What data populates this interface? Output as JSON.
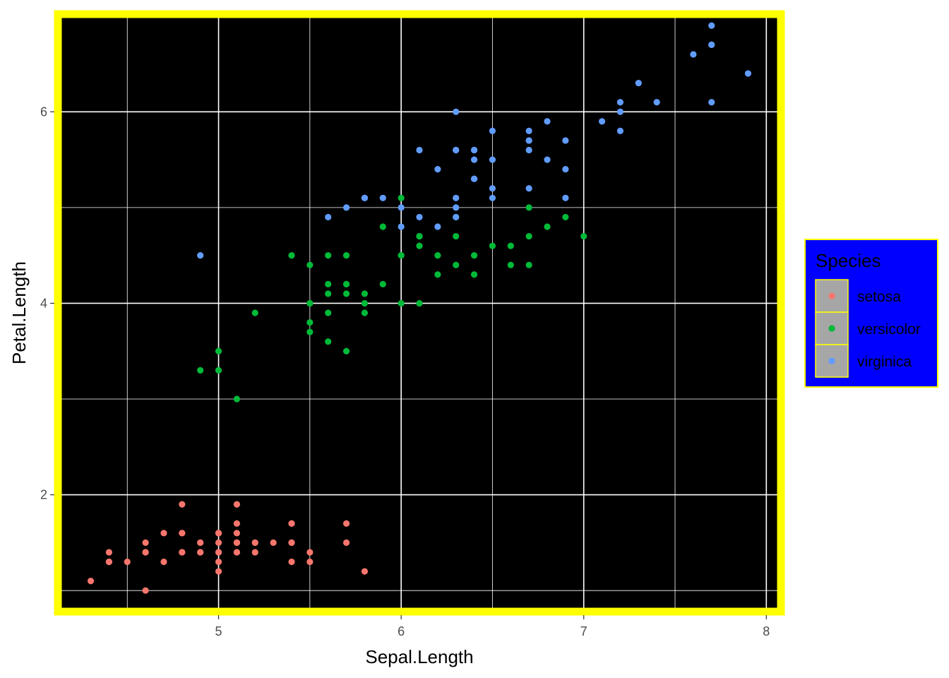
{
  "chart_data": {
    "type": "scatter",
    "xlabel": "Sepal.Length",
    "ylabel": "Petal.Length",
    "xlim": [
      4.12,
      8.08
    ],
    "ylim": [
      0.78,
      7.02
    ],
    "x_ticks": [
      5,
      6,
      7,
      8
    ],
    "y_ticks": [
      2,
      4,
      6
    ],
    "x_ticks_minor": [
      4.5,
      5.5,
      6.5,
      7.5
    ],
    "y_ticks_minor": [
      1,
      3,
      5,
      7
    ],
    "grid": true,
    "legend": {
      "title": "Species",
      "placement": "right",
      "entries": [
        "setosa",
        "versicolor",
        "virginica"
      ]
    },
    "colors": {
      "panel_background": "#000000",
      "panel_border": "#ffff00",
      "grid": "#ffffff",
      "legend_background": "#0000ff",
      "legend_border": "#ffff00",
      "legend_key_background": "#a6a6a6",
      "legend_key_border": "#ffff00"
    },
    "series": [
      {
        "name": "setosa",
        "color": "#F8766D",
        "points": [
          [
            5.1,
            1.4
          ],
          [
            4.9,
            1.4
          ],
          [
            4.7,
            1.3
          ],
          [
            4.6,
            1.5
          ],
          [
            5.0,
            1.4
          ],
          [
            5.4,
            1.7
          ],
          [
            4.6,
            1.4
          ],
          [
            5.0,
            1.5
          ],
          [
            4.4,
            1.4
          ],
          [
            4.9,
            1.5
          ],
          [
            5.4,
            1.5
          ],
          [
            4.8,
            1.6
          ],
          [
            4.8,
            1.4
          ],
          [
            4.3,
            1.1
          ],
          [
            5.8,
            1.2
          ],
          [
            5.7,
            1.5
          ],
          [
            5.4,
            1.3
          ],
          [
            5.1,
            1.4
          ],
          [
            5.7,
            1.7
          ],
          [
            5.1,
            1.5
          ],
          [
            5.4,
            1.7
          ],
          [
            5.1,
            1.5
          ],
          [
            4.6,
            1.0
          ],
          [
            5.1,
            1.7
          ],
          [
            4.8,
            1.9
          ],
          [
            5.0,
            1.6
          ],
          [
            5.0,
            1.6
          ],
          [
            5.2,
            1.5
          ],
          [
            5.2,
            1.4
          ],
          [
            4.7,
            1.6
          ],
          [
            4.8,
            1.6
          ],
          [
            5.4,
            1.5
          ],
          [
            5.2,
            1.5
          ],
          [
            5.5,
            1.4
          ],
          [
            4.9,
            1.5
          ],
          [
            5.0,
            1.2
          ],
          [
            5.5,
            1.3
          ],
          [
            4.9,
            1.4
          ],
          [
            4.4,
            1.3
          ],
          [
            5.1,
            1.5
          ],
          [
            5.0,
            1.3
          ],
          [
            4.5,
            1.3
          ],
          [
            4.4,
            1.3
          ],
          [
            5.0,
            1.6
          ],
          [
            5.1,
            1.9
          ],
          [
            4.8,
            1.4
          ],
          [
            5.1,
            1.6
          ],
          [
            4.6,
            1.4
          ],
          [
            5.3,
            1.5
          ],
          [
            5.0,
            1.4
          ]
        ]
      },
      {
        "name": "versicolor",
        "color": "#00BA38",
        "points": [
          [
            7.0,
            4.7
          ],
          [
            6.4,
            4.5
          ],
          [
            6.9,
            4.9
          ],
          [
            5.5,
            4.0
          ],
          [
            6.5,
            4.6
          ],
          [
            5.7,
            4.5
          ],
          [
            6.3,
            4.7
          ],
          [
            4.9,
            3.3
          ],
          [
            6.6,
            4.6
          ],
          [
            5.2,
            3.9
          ],
          [
            5.0,
            3.5
          ],
          [
            5.9,
            4.2
          ],
          [
            6.0,
            4.0
          ],
          [
            6.1,
            4.7
          ],
          [
            5.6,
            3.6
          ],
          [
            6.7,
            4.4
          ],
          [
            5.6,
            4.5
          ],
          [
            5.8,
            4.1
          ],
          [
            6.2,
            4.5
          ],
          [
            5.6,
            3.9
          ],
          [
            5.9,
            4.8
          ],
          [
            6.1,
            4.0
          ],
          [
            6.3,
            4.9
          ],
          [
            6.1,
            4.7
          ],
          [
            6.4,
            4.3
          ],
          [
            6.6,
            4.4
          ],
          [
            6.8,
            4.8
          ],
          [
            6.7,
            5.0
          ],
          [
            6.0,
            4.5
          ],
          [
            5.7,
            3.5
          ],
          [
            5.5,
            3.8
          ],
          [
            5.5,
            3.7
          ],
          [
            5.8,
            3.9
          ],
          [
            6.0,
            5.1
          ],
          [
            5.4,
            4.5
          ],
          [
            6.0,
            4.5
          ],
          [
            6.7,
            4.7
          ],
          [
            6.3,
            4.4
          ],
          [
            5.6,
            4.1
          ],
          [
            5.5,
            4.0
          ],
          [
            5.5,
            4.4
          ],
          [
            6.1,
            4.6
          ],
          [
            5.8,
            4.0
          ],
          [
            5.0,
            3.3
          ],
          [
            5.6,
            4.2
          ],
          [
            5.7,
            4.2
          ],
          [
            5.7,
            4.2
          ],
          [
            6.2,
            4.3
          ],
          [
            5.1,
            3.0
          ],
          [
            5.7,
            4.1
          ]
        ]
      },
      {
        "name": "virginica",
        "color": "#619CFF",
        "points": [
          [
            6.3,
            6.0
          ],
          [
            5.8,
            5.1
          ],
          [
            7.1,
            5.9
          ],
          [
            6.3,
            5.6
          ],
          [
            6.5,
            5.8
          ],
          [
            7.6,
            6.6
          ],
          [
            4.9,
            4.5
          ],
          [
            7.3,
            6.3
          ],
          [
            6.7,
            5.8
          ],
          [
            7.2,
            6.1
          ],
          [
            6.5,
            5.1
          ],
          [
            6.4,
            5.3
          ],
          [
            6.8,
            5.5
          ],
          [
            5.7,
            5.0
          ],
          [
            5.8,
            5.1
          ],
          [
            6.4,
            5.3
          ],
          [
            6.5,
            5.5
          ],
          [
            7.7,
            6.7
          ],
          [
            7.7,
            6.9
          ],
          [
            6.0,
            5.0
          ],
          [
            6.9,
            5.7
          ],
          [
            5.6,
            4.9
          ],
          [
            7.7,
            6.7
          ],
          [
            6.3,
            4.9
          ],
          [
            6.7,
            5.7
          ],
          [
            7.2,
            6.0
          ],
          [
            6.2,
            4.8
          ],
          [
            6.1,
            4.9
          ],
          [
            6.4,
            5.6
          ],
          [
            7.2,
            5.8
          ],
          [
            7.4,
            6.1
          ],
          [
            7.9,
            6.4
          ],
          [
            6.4,
            5.6
          ],
          [
            6.3,
            5.1
          ],
          [
            6.1,
            5.6
          ],
          [
            7.7,
            6.1
          ],
          [
            6.3,
            5.6
          ],
          [
            6.4,
            5.5
          ],
          [
            6.0,
            4.8
          ],
          [
            6.9,
            5.4
          ],
          [
            6.7,
            5.6
          ],
          [
            6.9,
            5.1
          ],
          [
            5.8,
            5.1
          ],
          [
            6.8,
            5.9
          ],
          [
            6.7,
            5.7
          ],
          [
            6.7,
            5.2
          ],
          [
            6.3,
            5.0
          ],
          [
            6.5,
            5.2
          ],
          [
            6.2,
            5.4
          ],
          [
            5.9,
            5.1
          ]
        ]
      }
    ]
  }
}
